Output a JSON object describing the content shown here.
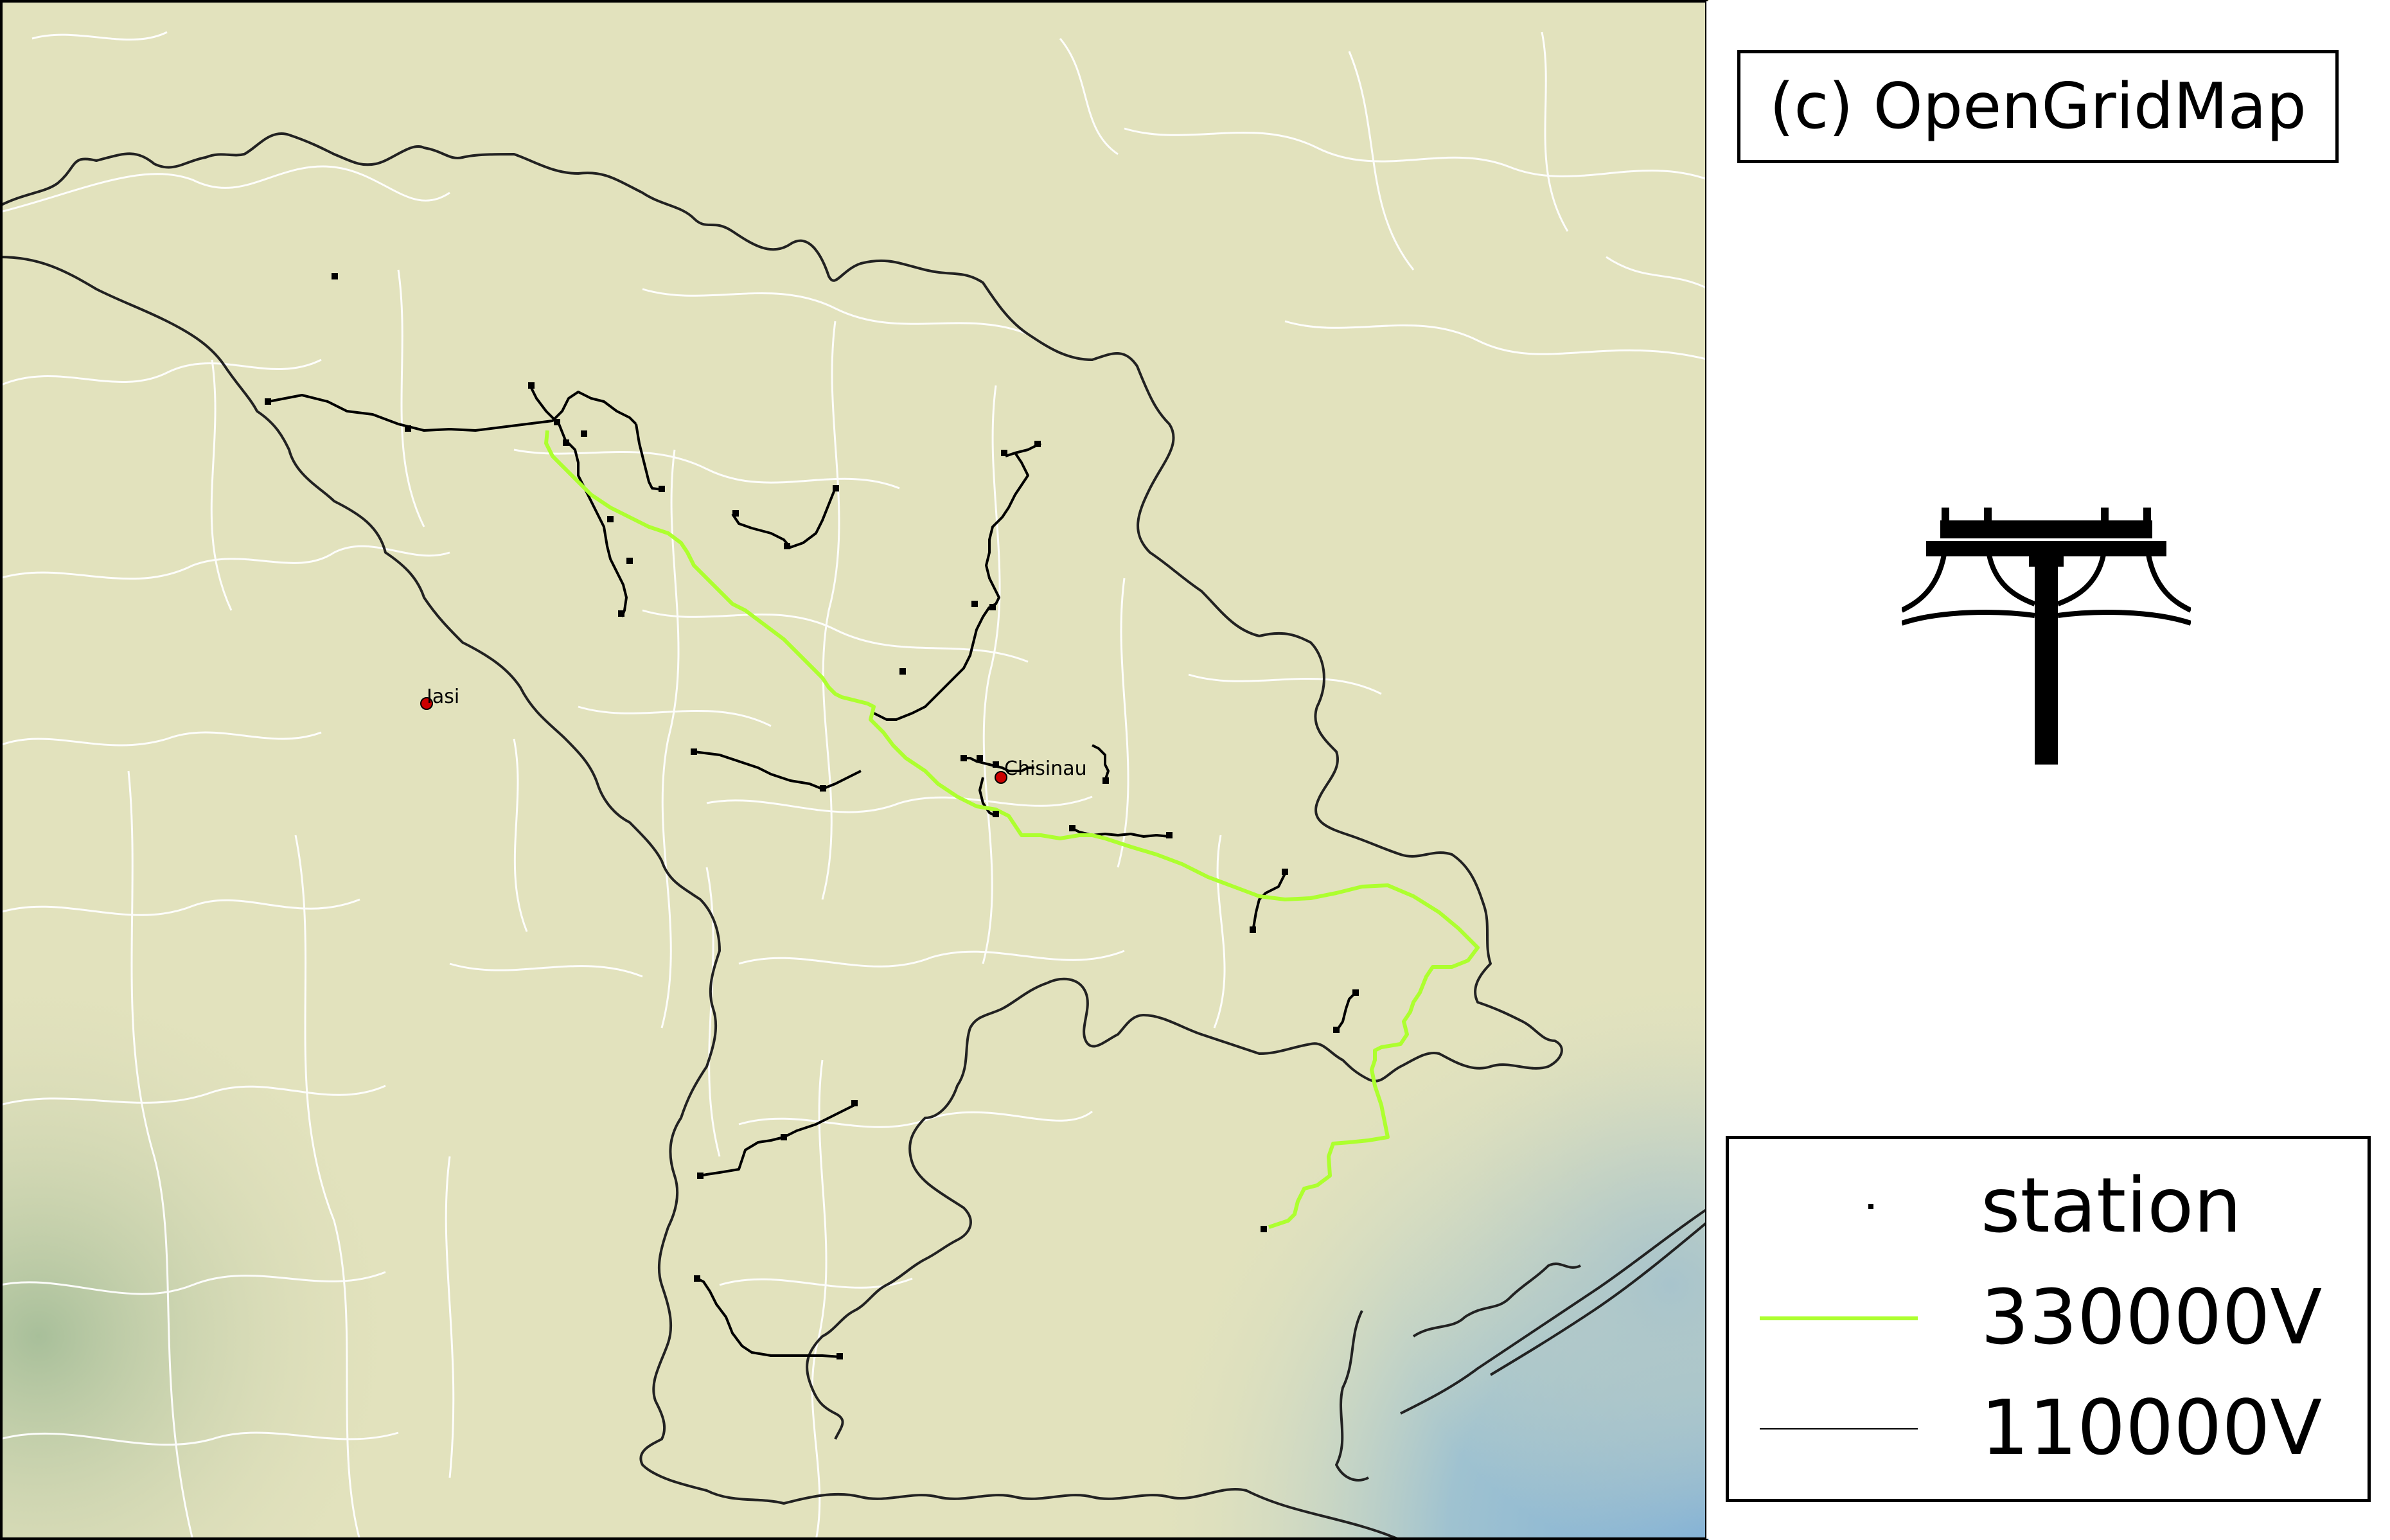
{
  "copyright": "(c) OpenGridMap",
  "logo_icon": "power-pylon-icon",
  "legend": {
    "items": [
      {
        "kind": "point",
        "label": "station",
        "color": "#000000"
      },
      {
        "kind": "line",
        "label": "330000V",
        "color": "#adff2f"
      },
      {
        "kind": "line",
        "label": "110000V",
        "color": "#000000"
      }
    ]
  },
  "cities": [
    {
      "name": "Iasi"
    },
    {
      "name": "Chisinau"
    }
  ],
  "colors": {
    "land": "#e2e2bd",
    "sea": "#7fb0d8",
    "borders": "#ffffff",
    "country_border": "#222222",
    "line_330kv": "#adff2f",
    "line_110kv": "#000000",
    "city_marker": "#cc0000"
  }
}
